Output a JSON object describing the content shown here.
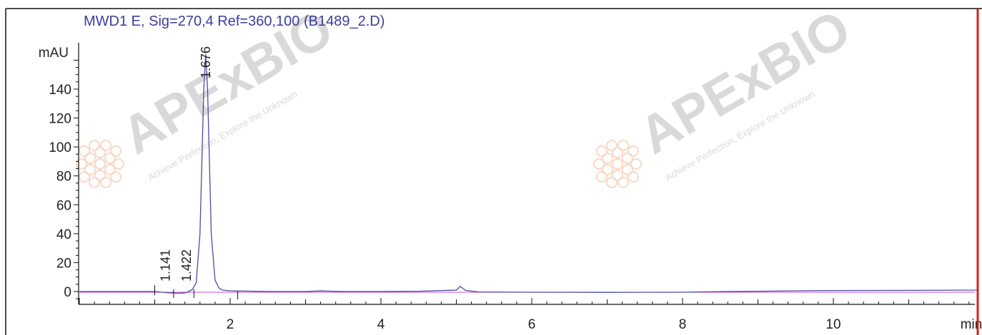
{
  "chart_data": {
    "type": "line",
    "title": "MWD1 E, Sig=270,4 Ref=360,100 (B1489_2.D)",
    "ylabel": "mAU",
    "xlabel": "min",
    "xlim": [
      0,
      12
    ],
    "ylim": [
      -8,
      168
    ],
    "xticks": [
      2,
      4,
      6,
      8,
      10
    ],
    "yticks": [
      0,
      20,
      40,
      60,
      80,
      100,
      120,
      140
    ],
    "peaks": [
      {
        "label": "1.141",
        "rt": 1.141
      },
      {
        "label": "1.422",
        "rt": 1.422
      },
      {
        "label": "1.676",
        "rt": 1.676
      }
    ],
    "series": [
      {
        "color": "#4a4aa8",
        "x": [
          0,
          0.5,
          1.0,
          1.1,
          1.2,
          1.3,
          1.4,
          1.45,
          1.5,
          1.55,
          1.6,
          1.63,
          1.65,
          1.676,
          1.7,
          1.72,
          1.75,
          1.8,
          1.85,
          1.9,
          2.0,
          2.5,
          3.0,
          3.2,
          3.5,
          4.0,
          4.5,
          5.0,
          5.03,
          5.05,
          5.08,
          5.12,
          5.3,
          6.0,
          7.0,
          8.0,
          8.6,
          9.0,
          9.5,
          10.0,
          11.0,
          11.9
        ],
        "y": [
          0,
          0,
          0,
          -0.5,
          -1.0,
          -1.2,
          -1.0,
          0,
          1.5,
          6,
          40,
          100,
          140,
          164,
          140,
          100,
          40,
          8,
          2.5,
          1,
          0.5,
          0,
          0,
          0.4,
          0,
          0,
          0.2,
          1.0,
          2.5,
          3.5,
          2.5,
          0.8,
          -0.3,
          -0.5,
          -0.6,
          -0.5,
          0,
          0.2,
          0.5,
          0.7,
          0.8,
          1.0
        ]
      }
    ]
  },
  "watermark": {
    "brand": "APExBIO",
    "tagline": "Achieve Perfection, Explore the Unknown",
    "color": "#d9d9d9",
    "accent": "#f6d9c7"
  },
  "marker_color": "#d81e1e"
}
